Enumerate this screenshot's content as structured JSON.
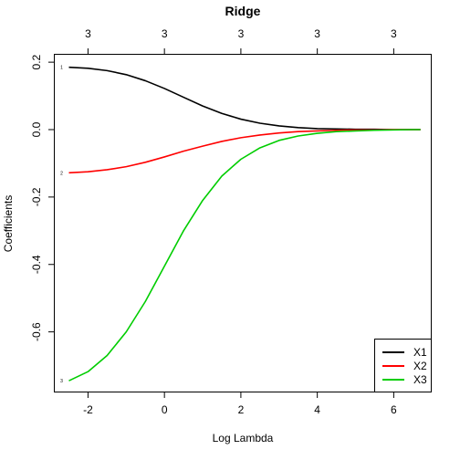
{
  "chart_data": {
    "type": "line",
    "title": "Ridge",
    "xlabel": "Log Lambda",
    "ylabel": "Coefficients",
    "xlim": [
      -2.87,
      6.97
    ],
    "ylim": [
      -0.777,
      0.222
    ],
    "x_ticks": [
      -2,
      0,
      2,
      4,
      6
    ],
    "x_tick_labels": [
      "-2",
      "0",
      "2",
      "4",
      "6"
    ],
    "y_ticks": [
      0.2,
      0.0,
      -0.2,
      -0.4,
      -0.6
    ],
    "y_tick_labels": [
      "0.2",
      "0.0",
      "-0.2",
      "-0.4",
      "-0.6"
    ],
    "top_axis_ticks": [
      -2,
      0,
      2,
      4,
      6
    ],
    "top_axis_labels": [
      "3",
      "3",
      "3",
      "3",
      "3"
    ],
    "grid": false,
    "legend_position": "bottom-right",
    "series": [
      {
        "name": "X1",
        "color": "#000000",
        "end_label": "1",
        "x": [
          -2.5,
          -2.0,
          -1.5,
          -1.0,
          -0.5,
          0.0,
          0.5,
          1.0,
          1.5,
          2.0,
          2.5,
          3.0,
          3.5,
          4.0,
          4.5,
          5.0,
          5.5,
          6.0,
          6.5,
          6.7
        ],
        "y": [
          0.185,
          0.182,
          0.175,
          0.163,
          0.145,
          0.122,
          0.096,
          0.07,
          0.048,
          0.031,
          0.019,
          0.011,
          0.006,
          0.003,
          0.002,
          0.001,
          0.001,
          0.0,
          0.0,
          0.0
        ]
      },
      {
        "name": "X2",
        "color": "#ff0000",
        "end_label": "2",
        "x": [
          -2.5,
          -2.0,
          -1.5,
          -1.0,
          -0.5,
          0.0,
          0.5,
          1.0,
          1.5,
          2.0,
          2.5,
          3.0,
          3.5,
          4.0,
          4.5,
          5.0,
          5.5,
          6.0,
          6.5,
          6.7
        ],
        "y": [
          -0.128,
          -0.125,
          -0.119,
          -0.11,
          -0.097,
          -0.081,
          -0.064,
          -0.049,
          -0.035,
          -0.024,
          -0.016,
          -0.01,
          -0.006,
          -0.004,
          -0.002,
          -0.001,
          -0.001,
          0.0,
          0.0,
          0.0
        ]
      },
      {
        "name": "X3",
        "color": "#00cd00",
        "end_label": "3",
        "x": [
          -2.5,
          -2.0,
          -1.5,
          -1.0,
          -0.5,
          0.0,
          0.5,
          1.0,
          1.5,
          2.0,
          2.5,
          3.0,
          3.5,
          4.0,
          4.5,
          5.0,
          5.5,
          6.0,
          6.5,
          6.7
        ],
        "y": [
          -0.745,
          -0.718,
          -0.67,
          -0.6,
          -0.51,
          -0.405,
          -0.3,
          -0.21,
          -0.138,
          -0.088,
          -0.054,
          -0.032,
          -0.019,
          -0.011,
          -0.006,
          -0.004,
          -0.002,
          -0.001,
          0.0,
          0.0
        ]
      }
    ]
  }
}
